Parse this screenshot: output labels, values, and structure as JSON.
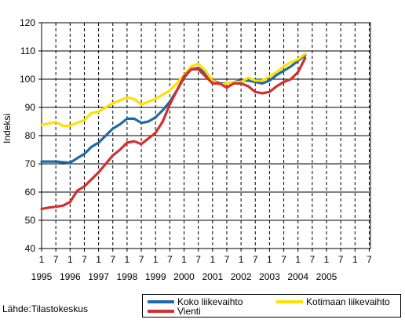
{
  "chart_data": {
    "type": "line",
    "ylabel": "Indeksi",
    "ylim": [
      40,
      120
    ],
    "yticks": [
      40,
      50,
      60,
      70,
      80,
      90,
      100,
      110,
      120
    ],
    "x_start_year": 1995,
    "x_end_year": 2005,
    "month_tick_labels": [
      "1",
      "7"
    ],
    "year_labels": [
      "1995",
      "1996",
      "1997",
      "1998",
      "1999",
      "2000",
      "2001",
      "2002",
      "2003",
      "2004",
      "2005"
    ],
    "grid": true,
    "legend_placement": "bottom-right",
    "series": [
      {
        "name": "Koko liikevaihto",
        "color": "#1f6aa5",
        "points": [
          [
            "1995-01",
            70.8
          ],
          [
            "1995-07",
            70.8
          ],
          [
            "1996-01",
            70.4
          ],
          [
            "1996-04",
            72.0
          ],
          [
            "1996-07",
            73.5
          ],
          [
            "1996-10",
            76.0
          ],
          [
            "1997-01",
            77.5
          ],
          [
            "1997-04",
            80.0
          ],
          [
            "1997-07",
            82.5
          ],
          [
            "1997-10",
            84.0
          ],
          [
            "1998-01",
            86.0
          ],
          [
            "1998-04",
            86.0
          ],
          [
            "1998-07",
            84.5
          ],
          [
            "1998-10",
            85.0
          ],
          [
            "1999-01",
            86.5
          ],
          [
            "1999-04",
            89.0
          ],
          [
            "1999-07",
            92.0
          ],
          [
            "1999-10",
            96.0
          ],
          [
            "2000-01",
            100.5
          ],
          [
            "2000-04",
            103.5
          ],
          [
            "2000-07",
            104.0
          ],
          [
            "2000-10",
            102.0
          ],
          [
            "2001-01",
            99.5
          ],
          [
            "2001-04",
            98.5
          ],
          [
            "2001-07",
            98.5
          ],
          [
            "2001-10",
            99.0
          ],
          [
            "2002-01",
            99.5
          ],
          [
            "2002-04",
            99.5
          ],
          [
            "2002-07",
            99.0
          ],
          [
            "2002-10",
            98.5
          ],
          [
            "2003-01",
            99.5
          ],
          [
            "2003-04",
            101.5
          ],
          [
            "2003-07",
            103.0
          ],
          [
            "2003-10",
            104.5
          ],
          [
            "2004-01",
            106.5
          ],
          [
            "2004-04",
            108.5
          ]
        ]
      },
      {
        "name": "Kotimaan liikevaihto",
        "color": "#ffe000",
        "points": [
          [
            "1995-01",
            83.8
          ],
          [
            "1995-07",
            84.8
          ],
          [
            "1995-10",
            83.5
          ],
          [
            "1996-01",
            83.5
          ],
          [
            "1996-04",
            84.5
          ],
          [
            "1996-07",
            85.5
          ],
          [
            "1996-10",
            88.0
          ],
          [
            "1997-01",
            88.5
          ],
          [
            "1997-04",
            90.0
          ],
          [
            "1997-07",
            91.5
          ],
          [
            "1997-10",
            92.5
          ],
          [
            "1998-01",
            93.5
          ],
          [
            "1998-04",
            93.0
          ],
          [
            "1998-07",
            91.0
          ],
          [
            "1998-10",
            92.0
          ],
          [
            "1999-01",
            93.0
          ],
          [
            "1999-04",
            94.5
          ],
          [
            "1999-07",
            96.0
          ],
          [
            "1999-10",
            98.5
          ],
          [
            "2000-01",
            101.5
          ],
          [
            "2000-04",
            104.5
          ],
          [
            "2000-07",
            105.5
          ],
          [
            "2000-10",
            103.0
          ],
          [
            "2001-01",
            99.5
          ],
          [
            "2001-04",
            98.0
          ],
          [
            "2001-07",
            98.5
          ],
          [
            "2001-10",
            99.0
          ],
          [
            "2002-01",
            99.0
          ],
          [
            "2002-04",
            100.5
          ],
          [
            "2002-07",
            99.5
          ],
          [
            "2002-10",
            99.5
          ],
          [
            "2003-01",
            101.0
          ],
          [
            "2003-04",
            102.5
          ],
          [
            "2003-07",
            104.5
          ],
          [
            "2003-10",
            106.0
          ],
          [
            "2004-01",
            107.0
          ],
          [
            "2004-04",
            109.0
          ]
        ]
      },
      {
        "name": "Vienti",
        "color": "#d32f2f",
        "points": [
          [
            "1995-01",
            54.0
          ],
          [
            "1995-04",
            54.5
          ],
          [
            "1995-07",
            54.8
          ],
          [
            "1995-10",
            55.2
          ],
          [
            "1996-01",
            56.5
          ],
          [
            "1996-04",
            60.5
          ],
          [
            "1996-07",
            62.0
          ],
          [
            "1996-10",
            64.5
          ],
          [
            "1997-01",
            67.0
          ],
          [
            "1997-04",
            70.0
          ],
          [
            "1997-07",
            73.0
          ],
          [
            "1997-10",
            75.0
          ],
          [
            "1998-01",
            77.5
          ],
          [
            "1998-04",
            78.0
          ],
          [
            "1998-07",
            77.0
          ],
          [
            "1998-10",
            79.0
          ],
          [
            "1999-01",
            81.0
          ],
          [
            "1999-04",
            85.0
          ],
          [
            "1999-07",
            91.0
          ],
          [
            "1999-10",
            96.0
          ],
          [
            "2000-01",
            101.0
          ],
          [
            "2000-04",
            103.5
          ],
          [
            "2000-07",
            103.5
          ],
          [
            "2000-10",
            101.0
          ],
          [
            "2001-01",
            98.5
          ],
          [
            "2001-04",
            98.5
          ],
          [
            "2001-07",
            97.0
          ],
          [
            "2001-10",
            98.5
          ],
          [
            "2002-01",
            98.5
          ],
          [
            "2002-04",
            97.5
          ],
          [
            "2002-07",
            95.5
          ],
          [
            "2002-10",
            95.0
          ],
          [
            "2003-01",
            95.5
          ],
          [
            "2003-04",
            97.5
          ],
          [
            "2003-07",
            99.0
          ],
          [
            "2003-10",
            100.0
          ],
          [
            "2004-01",
            102.5
          ],
          [
            "2004-04",
            107.5
          ]
        ]
      }
    ]
  },
  "source_text": "Lähde:Tilastokeskus",
  "legend": {
    "items": [
      {
        "label": "Koko liikevaihto",
        "color": "#1f6aa5"
      },
      {
        "label": "Kotimaan liikevaihto",
        "color": "#ffe000"
      },
      {
        "label": "Vienti",
        "color": "#d32f2f"
      }
    ]
  }
}
